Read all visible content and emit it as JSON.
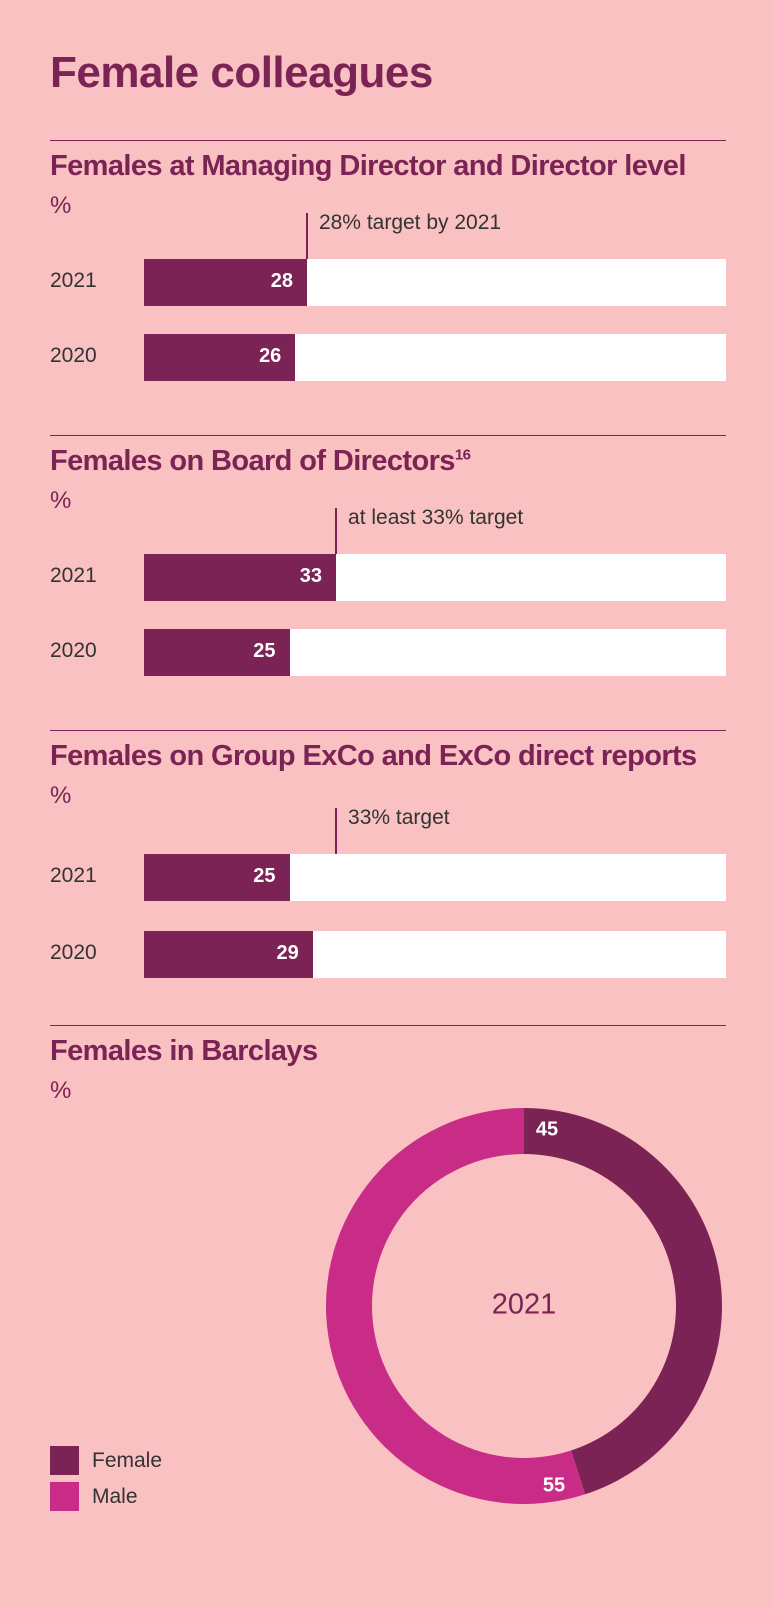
{
  "title": "Female colleagues",
  "colors": {
    "female": "#7a2354",
    "male": "#c92c87",
    "background": "#f9c1c1",
    "track": "#ffffff"
  },
  "chart_data": [
    {
      "type": "bar",
      "title": "Females at Managing Director and Director level",
      "unit": "%",
      "xlim": [
        0,
        100
      ],
      "categories": [
        "2021",
        "2020"
      ],
      "values": [
        28,
        26
      ],
      "target": {
        "value": 28,
        "label": "28% target by 2021"
      }
    },
    {
      "type": "bar",
      "title": "Females on Board of Directors",
      "title_note": "16",
      "unit": "%",
      "xlim": [
        0,
        100
      ],
      "categories": [
        "2021",
        "2020"
      ],
      "values": [
        33,
        25
      ],
      "target": {
        "value": 33,
        "label": "at least 33% target"
      }
    },
    {
      "type": "bar",
      "title": "Females on Group ExCo and ExCo direct reports",
      "unit": "%",
      "xlim": [
        0,
        100
      ],
      "categories": [
        "2021",
        "2020"
      ],
      "values": [
        25,
        29
      ],
      "target": {
        "value": 33,
        "label": "33% target"
      }
    },
    {
      "type": "pie",
      "title": "Females in Barclays",
      "unit": "%",
      "center_label": "2021",
      "categories": [
        "Female",
        "Male"
      ],
      "values": [
        45,
        55
      ],
      "legend": [
        "Female",
        "Male"
      ]
    }
  ]
}
